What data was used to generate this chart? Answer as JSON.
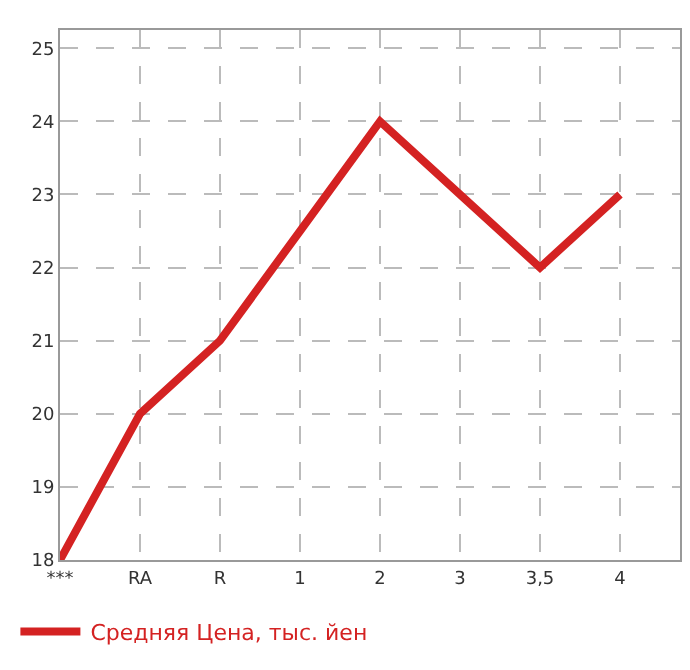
{
  "chart_data": {
    "type": "line",
    "categories": [
      "***",
      "RA",
      "R",
      "1",
      "2",
      "3",
      "3,5",
      "4"
    ],
    "series": [
      {
        "name": "Средняя Цена, тыс. йен",
        "color": "#d42222",
        "values": [
          18,
          20,
          21,
          22.5,
          24,
          23,
          22,
          23
        ]
      }
    ],
    "ylim": [
      18,
      25.25
    ],
    "yticks": [
      18,
      19,
      20,
      21,
      22,
      23,
      24,
      25
    ],
    "grid": true,
    "legend": "bottom left",
    "marker": "none",
    "line_style": "solid"
  }
}
